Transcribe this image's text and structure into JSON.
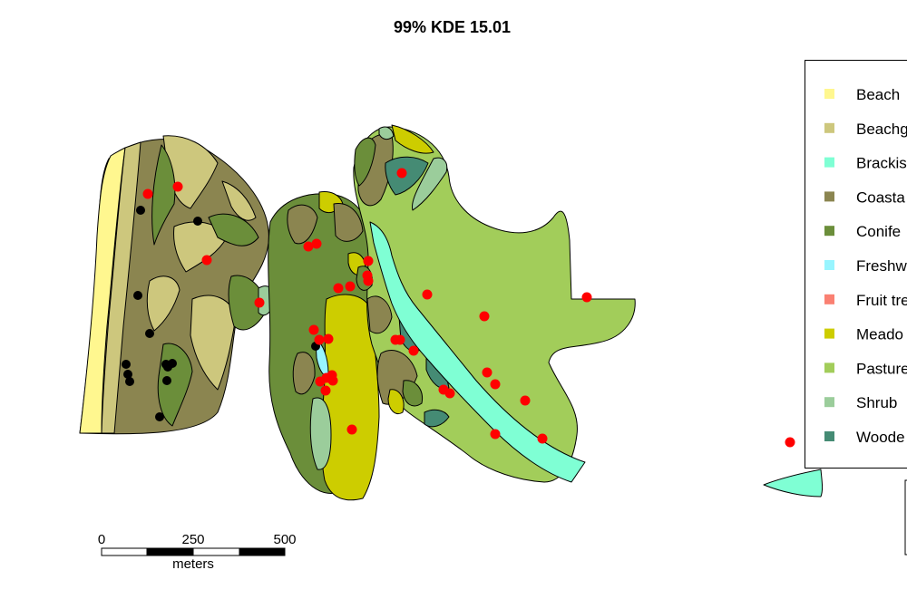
{
  "title": "99% KDE 15.01",
  "legend": {
    "items": [
      {
        "label": "Beach",
        "color": "#FFF78F"
      },
      {
        "label": "Beachg",
        "color": "#CDC77D"
      },
      {
        "label": "Brackis",
        "color": "#7FFFD4"
      },
      {
        "label": "Coasta",
        "color": "#8B8550"
      },
      {
        "label": "Conife",
        "color": "#6B8E3A"
      },
      {
        "label": "Freshw",
        "color": "#98F5FF"
      },
      {
        "label": "Fruit tre",
        "color": "#FA8072"
      },
      {
        "label": "Meado",
        "color": "#CDCD00"
      },
      {
        "label": "Pasture",
        "color": "#A2CD5A"
      },
      {
        "label": "Shrub",
        "color": "#9BCD9B"
      },
      {
        "label": "Woode",
        "color": "#458B74"
      }
    ]
  },
  "scale_bar": {
    "tick_labels": [
      "0",
      "250",
      "500"
    ],
    "unit": "meters"
  },
  "points": {
    "red_color": "#FF0000",
    "black_color": "#000000",
    "red_count": 42,
    "black_count": 13
  }
}
